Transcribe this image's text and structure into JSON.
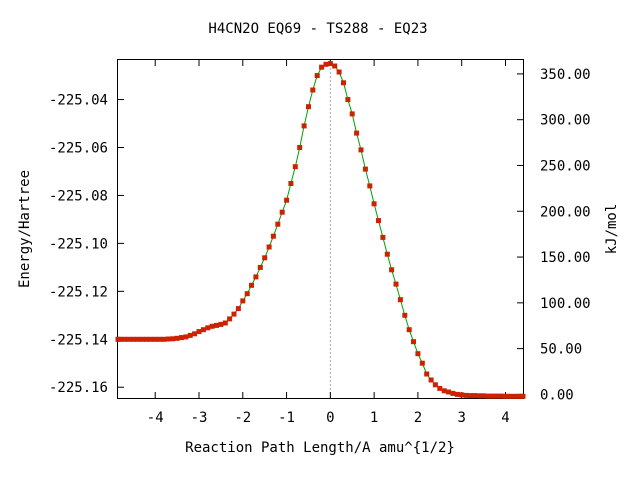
{
  "chart_data": {
    "type": "line",
    "title": "H4CN2O   EQ69 - TS288 - EQ23",
    "xlabel": "Reaction Path Length/A amu^{1/2}",
    "ylabel": "Energy/Hartree",
    "y2label": "kJ/mol",
    "xlim": [
      -4.85,
      4.4
    ],
    "ylim": [
      -225.1645,
      -225.0235
    ],
    "y2lim": [
      -3.93,
      365.2
    ],
    "xticks": [
      -4,
      -3,
      -2,
      -1,
      0,
      1,
      2,
      3,
      4
    ],
    "xtick_labels": [
      "-4",
      "-3",
      "-2",
      "-1",
      "0",
      "1",
      "2",
      "3",
      "4"
    ],
    "yticks": [
      -225.04,
      -225.06,
      -225.08,
      -225.1,
      -225.12,
      -225.14,
      -225.16
    ],
    "ytick_labels": [
      "-225.04",
      "-225.06",
      "-225.08",
      "-225.10",
      "-225.12",
      "-225.14",
      "-225.16"
    ],
    "y2ticks": [
      0,
      50,
      100,
      150,
      200,
      250,
      300,
      350
    ],
    "y2tick_labels": [
      "0.00",
      "50.00",
      "100.00",
      "150.00",
      "200.00",
      "250.00",
      "300.00",
      "350.00"
    ],
    "ts_marker_x": 0,
    "grid": false,
    "legend": "none",
    "colors": {
      "line": "#00a000",
      "marker": "#cc2200",
      "ts_line": "#aaaaaa",
      "axes": "#000000"
    },
    "series": [
      {
        "x": [
          -4.85,
          -4.8,
          -4.7,
          -4.6,
          -4.5,
          -4.4,
          -4.3,
          -4.2,
          -4.1,
          -4.0,
          -3.9,
          -3.8,
          -3.7,
          -3.6,
          -3.5,
          -3.4,
          -3.3,
          -3.2,
          -3.1,
          -3.0,
          -2.9,
          -2.8,
          -2.7,
          -2.6,
          -2.5,
          -2.4,
          -2.3,
          -2.2,
          -2.1,
          -2.0,
          -1.9,
          -1.8,
          -1.7,
          -1.6,
          -1.5,
          -1.4,
          -1.3,
          -1.2,
          -1.1,
          -1.0,
          -0.9,
          -0.8,
          -0.7,
          -0.6,
          -0.5,
          -0.4,
          -0.3,
          -0.2,
          -0.1,
          0.0,
          0.1,
          0.2,
          0.3,
          0.4,
          0.5,
          0.6,
          0.7,
          0.8,
          0.9,
          1.0,
          1.1,
          1.2,
          1.3,
          1.4,
          1.5,
          1.6,
          1.7,
          1.8,
          1.9,
          2.0,
          2.1,
          2.2,
          2.3,
          2.4,
          2.5,
          2.6,
          2.7,
          2.8,
          2.9,
          3.0,
          3.1,
          3.2,
          3.3,
          3.4,
          3.5,
          3.6,
          3.7,
          3.8,
          3.9,
          4.0,
          4.1,
          4.2,
          4.3,
          4.4
        ],
        "y": [
          -225.14,
          -225.14,
          -225.14,
          -225.14,
          -225.14,
          -225.14,
          -225.14,
          -225.14,
          -225.14,
          -225.14,
          -225.14,
          -225.14,
          -225.1399,
          -225.1398,
          -225.1396,
          -225.1393,
          -225.139,
          -225.1384,
          -225.1377,
          -225.1368,
          -225.136,
          -225.1352,
          -225.1346,
          -225.1342,
          -225.1338,
          -225.1332,
          -225.1315,
          -225.1295,
          -225.1272,
          -225.124,
          -225.121,
          -225.1175,
          -225.114,
          -225.11,
          -225.106,
          -225.1015,
          -225.097,
          -225.092,
          -225.087,
          -225.082,
          -225.075,
          -225.068,
          -225.06,
          -225.051,
          -225.043,
          -225.036,
          -225.03,
          -225.0265,
          -225.0253,
          -225.025,
          -225.026,
          -225.0285,
          -225.033,
          -225.04,
          -225.046,
          -225.054,
          -225.061,
          -225.069,
          -225.076,
          -225.0835,
          -225.0905,
          -225.0975,
          -225.1045,
          -225.111,
          -225.117,
          -225.1235,
          -225.13,
          -225.136,
          -225.141,
          -225.146,
          -225.15,
          -225.1545,
          -225.157,
          -225.159,
          -225.1605,
          -225.1615,
          -225.162,
          -225.1626,
          -225.163,
          -225.1632,
          -225.1634,
          -225.1635,
          -225.1635,
          -225.1636,
          -225.1636,
          -225.1637,
          -225.1637,
          -225.1637,
          -225.1637,
          -225.1638,
          -225.1638,
          -225.1638,
          -225.1638,
          -225.1638
        ]
      }
    ]
  }
}
